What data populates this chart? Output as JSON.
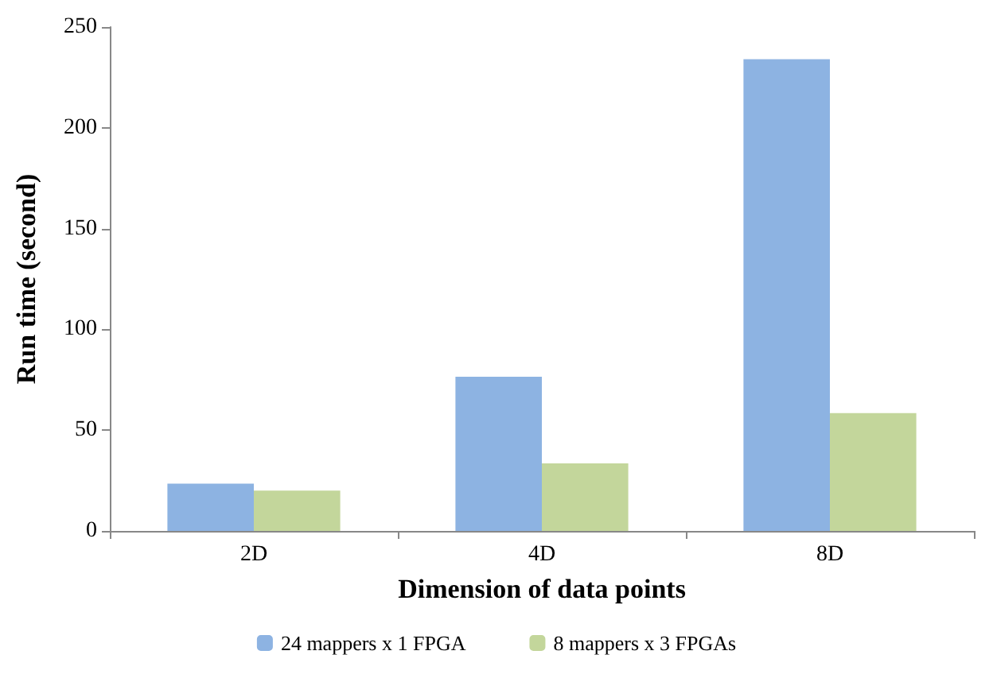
{
  "chart_data": {
    "type": "bar",
    "xlabel": "Dimension of data points",
    "ylabel": "Run time (second)",
    "categories": [
      "2D",
      "4D",
      "8D"
    ],
    "series": [
      {
        "name": "24 mappers x 1 FPGA",
        "color": "#8db3e2",
        "values": [
          23.5,
          76.5,
          234
        ]
      },
      {
        "name": "8 mappers x 3 FPGAs",
        "color": "#c3d69b",
        "values": [
          20,
          33.5,
          58.5
        ]
      }
    ],
    "ylim": [
      0,
      250
    ],
    "yticks": [
      0,
      50,
      100,
      150,
      200,
      250
    ],
    "grid": false,
    "legend": "bottom"
  }
}
